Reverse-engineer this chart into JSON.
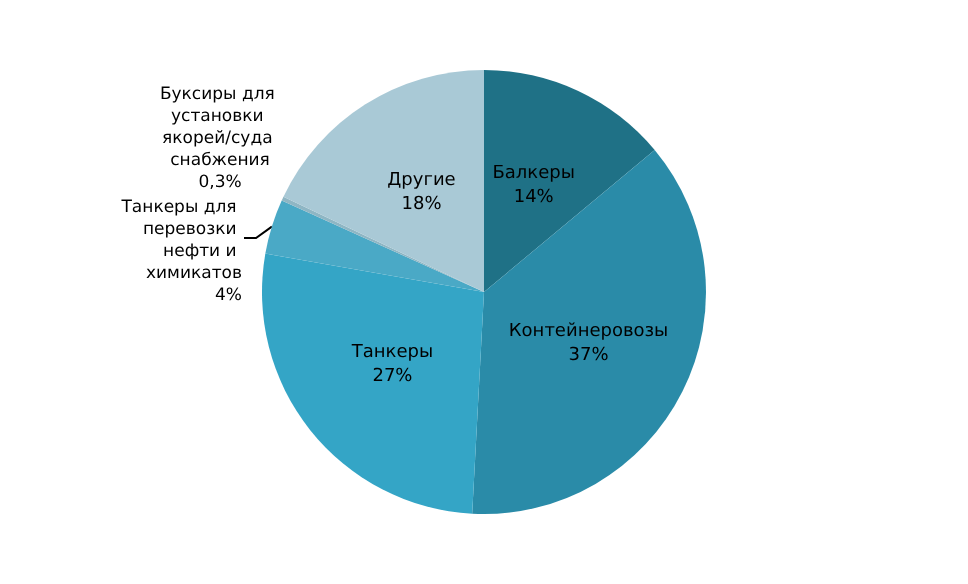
{
  "chart_data": {
    "type": "pie",
    "categories": [
      "Балкеры",
      "Контейнеровозы",
      "Танкеры",
      "Танкеры для перевозки нефти и химикатов",
      "Буксиры для установки якорей/суда снабжения",
      "Другие"
    ],
    "values": [
      14,
      37,
      27,
      4,
      0.3,
      18
    ],
    "value_labels": [
      "14%",
      "37%",
      "27%",
      "4%",
      "0,3%",
      "18%"
    ],
    "colors": [
      "#1f7186",
      "#2a8ba8",
      "#34a5c6",
      "#4aa9c6",
      "#8fb6c4",
      "#a9c9d6"
    ],
    "legend": false
  }
}
